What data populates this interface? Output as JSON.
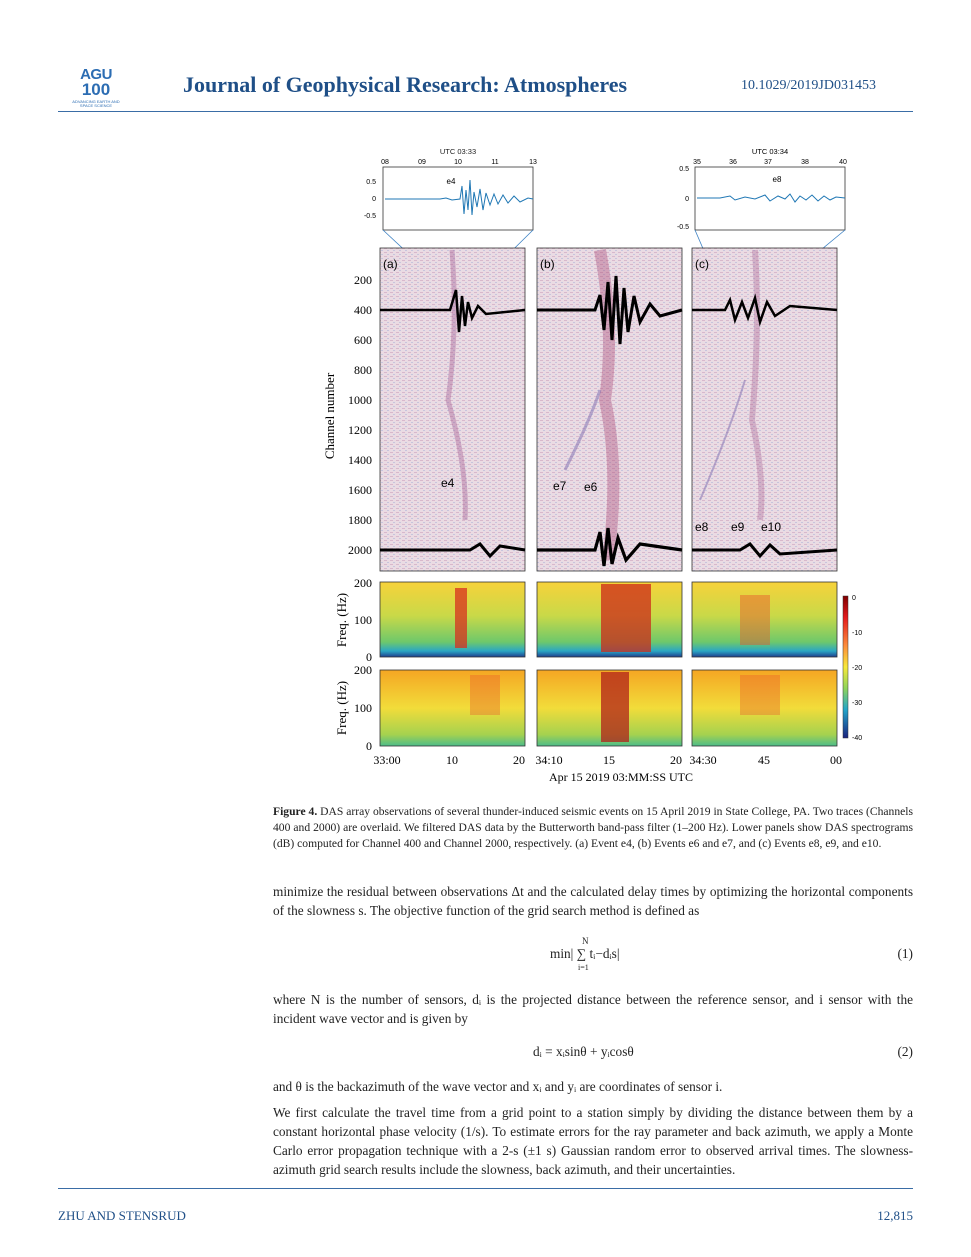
{
  "header": {
    "logo_top": "AGU",
    "logo_mid": "100",
    "logo_sub": "ADVANCING EARTH AND SPACE SCIENCE",
    "journal": "Journal of Geophysical Research: Atmospheres",
    "doi": "10.1029/2019JD031453"
  },
  "figure": {
    "insets": [
      {
        "utc": "UTC 03:33",
        "ticks": [
          "08",
          "09",
          "10",
          "11",
          "13"
        ],
        "yticks": [
          "0.5",
          "0",
          "-0.5"
        ],
        "event": "e4"
      },
      {
        "utc": "UTC 03:34",
        "ticks": [
          "35",
          "36",
          "37",
          "38",
          "40"
        ],
        "yticks": [
          "0.5",
          "0",
          "-0.5"
        ],
        "event": "e8"
      }
    ],
    "panel_labels": [
      "(a)",
      "(b)",
      "(c)"
    ],
    "events": [
      "e4",
      "e7",
      "e6",
      "e8",
      "e9",
      "e10"
    ],
    "channel_axis": {
      "label": "Channel number",
      "ticks": [
        "200",
        "400",
        "600",
        "800",
        "1000",
        "1200",
        "1400",
        "1600",
        "1800",
        "2000"
      ]
    },
    "freq_axis": {
      "label": "Freq. (Hz)",
      "ticks": [
        "200",
        "100",
        "0"
      ]
    },
    "colorbar_ticks": [
      "0",
      "-10",
      "-20",
      "-30",
      "-40"
    ],
    "x_ticks": [
      "33:00",
      "10",
      "20",
      "34:10",
      "15",
      "20",
      "34:30",
      "45",
      "00"
    ],
    "x_label": "Apr 15 2019 03:MM:SS UTC"
  },
  "caption": {
    "label": "Figure 4.",
    "text": " DAS array observations of several thunder-induced seismic events on 15 April 2019 in State College, PA. Two traces (Channels 400 and 2000) are overlaid. We filtered DAS data by the Butterworth band-pass filter (1–200 Hz). Lower panels show DAS spectrograms (dB) computed for Channel 400 and Channel 2000, respectively. (a) Event e4, (b) Events e6 and e7, and (c) Events e8, e9, and e10."
  },
  "body": {
    "p1": "minimize the residual between observations Δt and the calculated delay times by optimizing the horizontal components of the slowness s. The objective function of the grid search method is defined as",
    "eq1": "min| ∑ tᵢ−dᵢs|",
    "eq1_top": "N",
    "eq1_bottom": "i=1",
    "eq1_num": "(1)",
    "p2": "where N is the number of sensors, dᵢ is the projected distance between the reference sensor, and i sensor with the incident wave vector and is given by",
    "eq2": "dᵢ = xᵢsinθ + yᵢcosθ",
    "eq2_num": "(2)",
    "p3": "and θ is the backazimuth of the wave vector and xᵢ and yᵢ are coordinates of sensor i.",
    "p4": "We first calculate the travel time from a grid point to a station simply by dividing the distance between them by a constant horizontal phase velocity (1/s). To estimate errors for the ray parameter and back azimuth, we apply a Monte Carlo error propagation technique with a 2-s (±1 s) Gaussian random error to observed arrival times. The slowness-azimuth grid search results include the slowness, back azimuth, and their uncertainties."
  },
  "footer": {
    "authors": "ZHU AND STENSRUD",
    "page": "12,815"
  },
  "colors": {
    "header_blue": "#1f4f87",
    "trace_blue": "#1f77b4"
  }
}
